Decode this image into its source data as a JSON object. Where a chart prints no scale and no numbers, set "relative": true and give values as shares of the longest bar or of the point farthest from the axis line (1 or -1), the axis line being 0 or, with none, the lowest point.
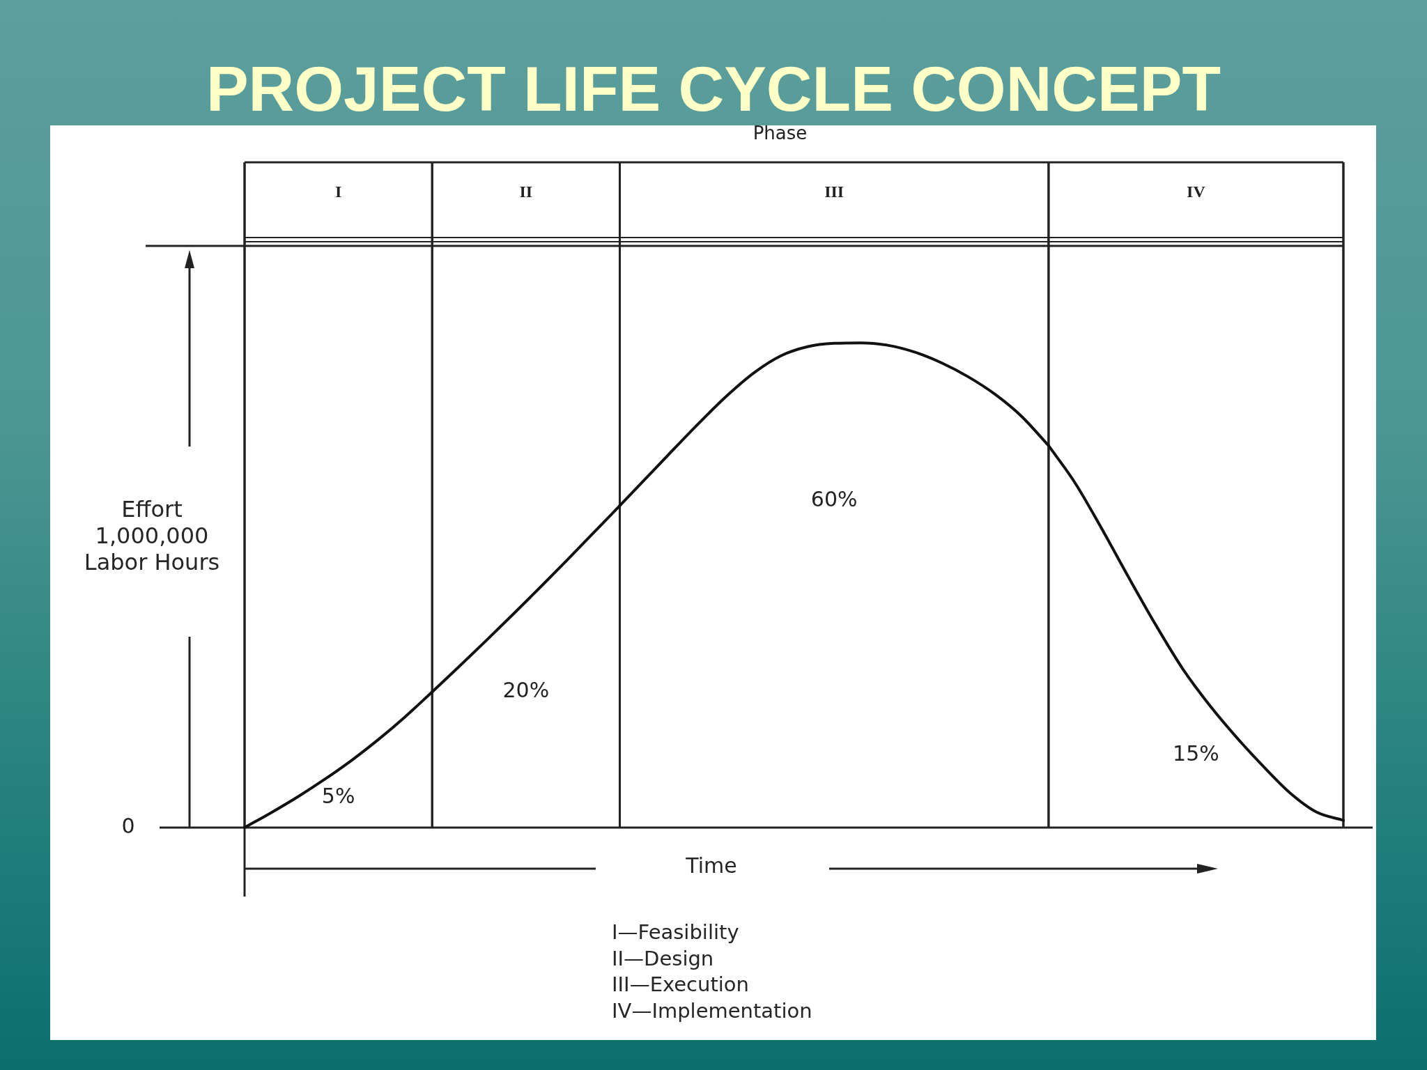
{
  "chart_data": {
    "type": "line",
    "title": "PROJECT LIFE CYCLE CONCEPT",
    "xlabel": "Time",
    "ylabel": "Effort 1,000,000 Labor Hours",
    "relative": true,
    "tick_labels": false,
    "grid": "x",
    "categories": [
      null,
      null,
      null,
      null,
      null,
      null,
      null,
      null,
      null,
      null,
      null,
      null,
      null,
      null,
      null,
      null,
      null,
      null,
      null,
      null,
      null,
      null,
      null,
      null,
      null,
      null,
      null,
      null,
      null,
      null,
      null,
      null,
      null,
      null,
      null,
      null,
      null,
      null,
      null,
      null,
      null,
      null
    ],
    "series": [
      {
        "color": "#111111",
        "values": [
          0,
          0.031,
          0.064,
          0.1,
          0.139,
          0.182,
          0.229,
          0.28,
          null,
          null,
          null,
          null,
          null,
          null,
          null,
          null,
          null,
          null,
          null,
          null,
          null,
          null,
          null,
          null,
          null,
          null,
          null,
          null,
          null,
          null,
          null,
          null,
          null,
          null,
          null,
          null,
          null,
          null,
          null,
          null,
          null,
          null
        ]
      },
      {
        "color": "#111111",
        "values": [
          null,
          null,
          null,
          null,
          null,
          null,
          null,
          0.28,
          0.332,
          0.385,
          0.439,
          0.494,
          0.55,
          0.607,
          0.664,
          null,
          null,
          null,
          null,
          null,
          null,
          null,
          null,
          null,
          null,
          null,
          null,
          null,
          null,
          null,
          null,
          null,
          null,
          null,
          null,
          null,
          null,
          null,
          null,
          null,
          null,
          null
        ]
      },
      {
        "color": "#111111",
        "values": [
          null,
          null,
          null,
          null,
          null,
          null,
          null,
          null,
          null,
          null,
          null,
          null,
          null,
          null,
          0.664,
          0.722,
          0.78,
          0.837,
          0.891,
          0.938,
          0.973,
          0.992,
          0.999,
          1,
          0.995,
          0.981,
          0.959,
          0.93,
          0.894,
          0.848,
          0.788,
          null,
          null,
          null,
          null,
          null,
          null,
          null,
          null,
          null,
          null,
          null
        ]
      },
      {
        "color": "#111111",
        "values": [
          null,
          null,
          null,
          null,
          null,
          null,
          null,
          null,
          null,
          null,
          null,
          null,
          null,
          null,
          null,
          null,
          null,
          null,
          null,
          null,
          null,
          null,
          null,
          null,
          null,
          null,
          null,
          null,
          null,
          null,
          0.788,
          0.71,
          0.615,
          0.515,
          0.418,
          0.328,
          0.253,
          0.187,
          0.127,
          0.072,
          0.032,
          0.015
        ]
      }
    ],
    "annotations": [
      "Phase",
      "I",
      "II",
      "III",
      "IV",
      "5%",
      "20%",
      "60%",
      "15%",
      "0",
      "I—Feasibility",
      "II—Design",
      "III—Execution",
      "IV—Implementation"
    ]
  }
}
